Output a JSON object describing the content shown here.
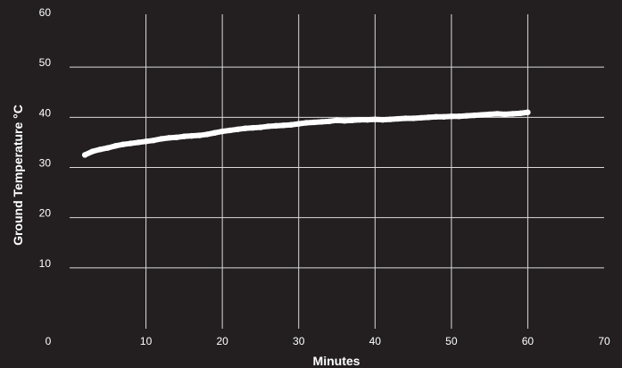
{
  "chart_data": {
    "type": "line",
    "title": "",
    "xlabel": "Minutes",
    "ylabel": "Ground Temperature °C",
    "xlim": [
      0,
      70
    ],
    "ylim": [
      0,
      60
    ],
    "x_ticks": [
      0,
      10,
      20,
      30,
      40,
      50,
      60,
      70
    ],
    "y_ticks": [
      10,
      20,
      30,
      40,
      50,
      60
    ],
    "grid": "on",
    "legend": "none",
    "colors": {
      "background": "#231f20",
      "line": "#ffffff",
      "grid": "#d9d9d9",
      "text": "#ffffff"
    },
    "series": [
      {
        "x": [
          2,
          3,
          4,
          5,
          6,
          7,
          8,
          9,
          10,
          11,
          12,
          13,
          14,
          15,
          16,
          17,
          18,
          19,
          20,
          21,
          22,
          23,
          24,
          25,
          26,
          27,
          28,
          29,
          30,
          31,
          32,
          33,
          34,
          35,
          36,
          37,
          38,
          39,
          40,
          41,
          42,
          43,
          44,
          45,
          46,
          47,
          48,
          49,
          50,
          51,
          52,
          53,
          54,
          55,
          56,
          57,
          58,
          59,
          60
        ],
        "y": [
          32.5,
          33.2,
          33.6,
          33.9,
          34.3,
          34.6,
          34.8,
          35.0,
          35.2,
          35.4,
          35.7,
          35.9,
          36.0,
          36.2,
          36.3,
          36.4,
          36.6,
          36.9,
          37.2,
          37.4,
          37.6,
          37.8,
          37.9,
          38.0,
          38.2,
          38.3,
          38.4,
          38.5,
          38.7,
          38.9,
          39.0,
          39.1,
          39.2,
          39.4,
          39.3,
          39.4,
          39.5,
          39.5,
          39.6,
          39.5,
          39.6,
          39.7,
          39.8,
          39.8,
          39.9,
          40.0,
          40.1,
          40.1,
          40.2,
          40.2,
          40.3,
          40.4,
          40.5,
          40.6,
          40.7,
          40.6,
          40.7,
          40.8,
          41.0
        ]
      }
    ]
  }
}
